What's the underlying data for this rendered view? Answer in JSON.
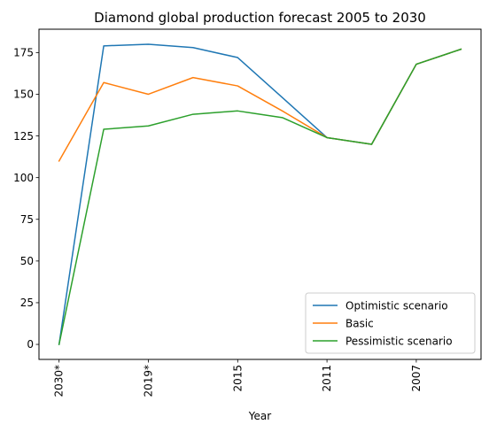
{
  "chart_data": {
    "type": "line",
    "title": "Diamond global production forecast 2005 to 2030",
    "xlabel": "Year",
    "ylabel": "",
    "categories": [
      "2030*",
      "",
      "2019*",
      "",
      "2015",
      "",
      "2011",
      "",
      "2007",
      ""
    ],
    "y_ticks": [
      0,
      25,
      50,
      75,
      100,
      125,
      150,
      175
    ],
    "ylim": [
      -9,
      189
    ],
    "grid": false,
    "legend_position": "lower-right",
    "series": [
      {
        "name": "Optimistic scenario",
        "color": "#1f77b4",
        "values": [
          0,
          179,
          180,
          178,
          172,
          148,
          124,
          120,
          168,
          177
        ]
      },
      {
        "name": "Basic",
        "color": "#ff7f0e",
        "values": [
          110,
          157,
          150,
          160,
          155,
          140,
          124,
          120,
          168,
          177
        ]
      },
      {
        "name": "Pessimistic scenario",
        "color": "#2ca02c",
        "values": [
          0,
          129,
          131,
          138,
          140,
          136,
          124,
          120,
          168,
          177
        ]
      }
    ]
  }
}
